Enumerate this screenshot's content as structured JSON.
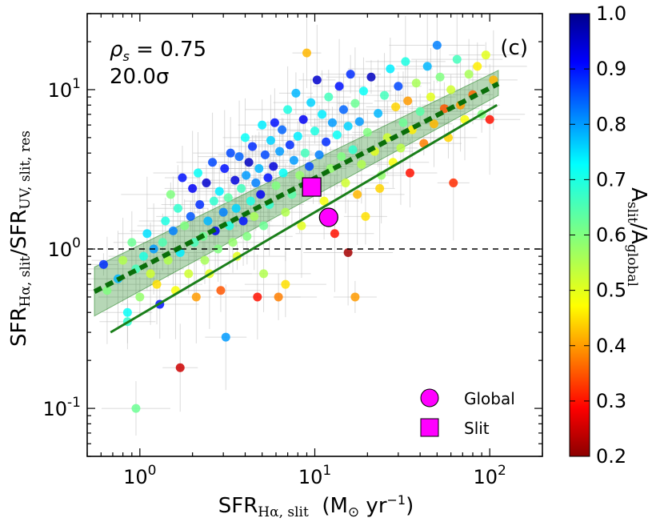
{
  "chart_data": {
    "type": "scatter",
    "panel_label": "(c)",
    "annotation_rho": "0.75",
    "annotation_rho_prefix": "ρ",
    "annotation_rho_sub": "s",
    "annotation_sigma": "20.0σ",
    "xlabel": {
      "main": "SFR",
      "sub": "Hα, slit",
      "units": "(M",
      "units_sub": "⊙",
      "units_tail": " yr",
      "units_exp": "−1",
      "units_close": ")"
    },
    "ylabel": {
      "main1": "SFR",
      "sub1": "Hα, slit",
      "sep": "/",
      "main2": "SFR",
      "sub2": "UV, slit, res"
    },
    "xscale": "log",
    "yscale": "log",
    "xlim": [
      0.5,
      200
    ],
    "ylim": [
      0.05,
      30
    ],
    "xticks": [
      1,
      10,
      100
    ],
    "xtick_labels": [
      {
        "base": "10",
        "exp": "0"
      },
      {
        "base": "10",
        "exp": "1"
      },
      {
        "base": "10",
        "exp": "2"
      }
    ],
    "yticks": [
      0.1,
      1,
      10
    ],
    "ytick_labels": [
      {
        "base": "10",
        "exp": "-1"
      },
      {
        "base": "10",
        "exp": "0"
      },
      {
        "base": "10",
        "exp": "1"
      }
    ],
    "unity_line_y": 1.0,
    "one_to_one_line": {
      "x": [
        0.68,
        110
      ],
      "y": [
        0.3,
        8.0
      ]
    },
    "fit_line": {
      "x": [
        0.55,
        112
      ],
      "y": [
        0.54,
        10.9
      ]
    },
    "fit_band": {
      "x": [
        0.55,
        112
      ],
      "lower": [
        0.38,
        9.2
      ],
      "upper": [
        0.77,
        13.2
      ]
    },
    "legend": [
      {
        "name": "Global",
        "marker": "circle",
        "x": 12.0,
        "y": 1.58
      },
      {
        "name": "Slit",
        "marker": "square",
        "x": 9.6,
        "y": 2.45
      }
    ],
    "special_points_color": "#ff00ff",
    "colorbar": {
      "label_main": "A",
      "label_sub1": "slit",
      "label_sep": "/",
      "label_main2": "A",
      "label_sub2": "global",
      "range": [
        0.2,
        1.0
      ],
      "ticks": [
        "0.2",
        "0.3",
        "0.4",
        "0.5",
        "0.6",
        "0.7",
        "0.8",
        "0.9",
        "1.0"
      ]
    },
    "points": [
      [
        0.62,
        0.8,
        0.88
      ],
      [
        0.65,
        0.55,
        0.6
      ],
      [
        0.75,
        0.65,
        0.78
      ],
      [
        0.8,
        0.85,
        0.55
      ],
      [
        0.85,
        0.4,
        0.72
      ],
      [
        0.9,
        1.1,
        0.62
      ],
      [
        0.95,
        0.75,
        0.66
      ],
      [
        1.0,
        0.5,
        0.58
      ],
      [
        1.05,
        0.9,
        0.7
      ],
      [
        1.1,
        1.25,
        0.75
      ],
      [
        1.15,
        0.7,
        0.52
      ],
      [
        1.2,
        1.0,
        0.8
      ],
      [
        1.25,
        0.6,
        0.45
      ],
      [
        1.3,
        0.45,
        0.9
      ],
      [
        1.35,
        1.1,
        0.65
      ],
      [
        1.4,
        1.5,
        0.7
      ],
      [
        1.45,
        0.85,
        0.55
      ],
      [
        1.5,
        2.2,
        0.6
      ],
      [
        1.55,
        1.3,
        0.82
      ],
      [
        1.6,
        0.55,
        0.48
      ],
      [
        1.65,
        1.8,
        0.68
      ],
      [
        1.7,
        0.95,
        0.74
      ],
      [
        1.75,
        2.8,
        0.9
      ],
      [
        1.8,
        1.4,
        0.6
      ],
      [
        1.9,
        0.7,
        0.52
      ],
      [
        1.95,
        1.6,
        0.85
      ],
      [
        2.0,
        2.4,
        0.92
      ],
      [
        2.05,
        1.1,
        0.66
      ],
      [
        2.1,
        0.5,
        0.4
      ],
      [
        2.15,
        3.0,
        0.72
      ],
      [
        2.2,
        1.9,
        0.88
      ],
      [
        2.3,
        1.2,
        0.62
      ],
      [
        2.35,
        0.85,
        0.56
      ],
      [
        2.4,
        2.6,
        0.95
      ],
      [
        2.45,
        1.5,
        0.78
      ],
      [
        2.5,
        0.7,
        0.5
      ],
      [
        2.6,
        3.5,
        0.86
      ],
      [
        2.65,
        2.0,
        0.68
      ],
      [
        2.7,
        1.3,
        0.92
      ],
      [
        2.8,
        1.0,
        0.6
      ],
      [
        2.85,
        2.3,
        0.74
      ],
      [
        2.9,
        0.55,
        0.35
      ],
      [
        3.0,
        1.7,
        0.82
      ],
      [
        3.05,
        3.2,
        0.9
      ],
      [
        3.1,
        0.28,
        0.8
      ],
      [
        3.2,
        2.1,
        0.64
      ],
      [
        3.25,
        1.4,
        0.7
      ],
      [
        3.3,
        4.0,
        0.86
      ],
      [
        3.4,
        1.1,
        0.58
      ],
      [
        3.5,
        2.7,
        0.94
      ],
      [
        3.55,
        1.8,
        0.76
      ],
      [
        3.6,
        0.9,
        0.5
      ],
      [
        3.7,
        3.8,
        0.84
      ],
      [
        3.8,
        2.4,
        0.66
      ],
      [
        3.9,
        1.5,
        0.9
      ],
      [
        4.0,
        5.0,
        0.72
      ],
      [
        4.05,
        2.9,
        0.8
      ],
      [
        4.1,
        1.2,
        0.6
      ],
      [
        4.2,
        3.5,
        0.96
      ],
      [
        4.3,
        2.0,
        0.7
      ],
      [
        4.4,
        4.4,
        0.88
      ],
      [
        4.5,
        1.6,
        0.56
      ],
      [
        4.6,
        2.6,
        0.82
      ],
      [
        4.7,
        0.5,
        0.3
      ],
      [
        4.8,
        3.2,
        0.78
      ],
      [
        4.9,
        2.2,
        0.92
      ],
      [
        5.0,
        6.0,
        0.74
      ],
      [
        5.1,
        1.4,
        0.62
      ],
      [
        5.2,
        3.9,
        0.86
      ],
      [
        5.4,
        2.8,
        0.9
      ],
      [
        5.5,
        1.9,
        0.68
      ],
      [
        5.6,
        4.8,
        0.76
      ],
      [
        5.8,
        3.3,
        0.94
      ],
      [
        5.9,
        6.2,
        0.9
      ],
      [
        6.0,
        2.5,
        0.6
      ],
      [
        6.2,
        0.5,
        0.38
      ],
      [
        6.3,
        4.1,
        0.8
      ],
      [
        6.5,
        5.6,
        0.84
      ],
      [
        6.6,
        3.0,
        0.72
      ],
      [
        6.8,
        1.7,
        0.55
      ],
      [
        7.0,
        7.5,
        0.7
      ],
      [
        7.2,
        4.5,
        0.88
      ],
      [
        7.4,
        2.2,
        0.64
      ],
      [
        7.6,
        3.6,
        0.8
      ],
      [
        7.8,
        9.5,
        0.78
      ],
      [
        8.0,
        5.1,
        0.74
      ],
      [
        8.2,
        2.9,
        0.58
      ],
      [
        8.4,
        1.4,
        0.5
      ],
      [
        8.6,
        6.5,
        0.92
      ],
      [
        8.8,
        4.0,
        0.66
      ],
      [
        9.0,
        17.0,
        0.42
      ],
      [
        9.3,
        3.3,
        0.86
      ],
      [
        9.5,
        8.3,
        0.76
      ],
      [
        9.8,
        2.5,
        0.62
      ],
      [
        10.0,
        5.5,
        0.7
      ],
      [
        10.3,
        11.5,
        0.95
      ],
      [
        10.6,
        3.9,
        0.82
      ],
      [
        11.0,
        7.0,
        0.74
      ],
      [
        11.3,
        2.0,
        0.48
      ],
      [
        11.6,
        4.7,
        0.88
      ],
      [
        12.0,
        9.0,
        0.66
      ],
      [
        12.3,
        3.2,
        0.58
      ],
      [
        12.6,
        6.2,
        0.8
      ],
      [
        13.0,
        1.25,
        0.3
      ],
      [
        13.4,
        5.2,
        0.72
      ],
      [
        13.8,
        10.5,
        0.9
      ],
      [
        14.2,
        3.8,
        0.6
      ],
      [
        14.6,
        7.5,
        0.84
      ],
      [
        15.0,
        2.6,
        0.52
      ],
      [
        15.5,
        5.9,
        0.76
      ],
      [
        16.0,
        12.5,
        0.88
      ],
      [
        16.5,
        4.2,
        0.68
      ],
      [
        17.0,
        8.2,
        0.62
      ],
      [
        17.5,
        2.2,
        0.42
      ],
      [
        18.0,
        6.3,
        0.8
      ],
      [
        18.5,
        3.4,
        0.55
      ],
      [
        19.0,
        9.8,
        0.72
      ],
      [
        19.5,
        1.6,
        0.45
      ],
      [
        20.0,
        5.4,
        0.6
      ],
      [
        21.0,
        12.0,
        0.96
      ],
      [
        22.0,
        4.1,
        0.5
      ],
      [
        23.0,
        7.1,
        0.78
      ],
      [
        24.0,
        2.9,
        0.58
      ],
      [
        25.0,
        9.2,
        0.66
      ],
      [
        26.0,
        5.0,
        0.52
      ],
      [
        27.0,
        13.5,
        0.74
      ],
      [
        28.0,
        3.5,
        0.48
      ],
      [
        29.0,
        7.8,
        0.44
      ],
      [
        30.0,
        10.5,
        0.86
      ],
      [
        31.0,
        4.3,
        0.54
      ],
      [
        32.0,
        6.2,
        0.62
      ],
      [
        33.0,
        15.0,
        0.7
      ],
      [
        34.0,
        8.5,
        0.4
      ],
      [
        35.0,
        3.0,
        0.3
      ],
      [
        36.0,
        5.6,
        0.46
      ],
      [
        38.0,
        11.0,
        0.56
      ],
      [
        40.0,
        7.3,
        0.64
      ],
      [
        42.0,
        4.6,
        0.38
      ],
      [
        44.0,
        14.0,
        0.78
      ],
      [
        46.0,
        9.0,
        0.5
      ],
      [
        48.0,
        6.1,
        0.42
      ],
      [
        50.0,
        19.0,
        0.82
      ],
      [
        52.0,
        12.0,
        0.6
      ],
      [
        55.0,
        7.6,
        0.35
      ],
      [
        58.0,
        5.0,
        0.44
      ],
      [
        60.0,
        10.0,
        0.52
      ],
      [
        62.0,
        2.6,
        0.32
      ],
      [
        65.0,
        15.5,
        0.66
      ],
      [
        68.0,
        8.0,
        0.4
      ],
      [
        72.0,
        6.5,
        0.48
      ],
      [
        76.0,
        12.5,
        0.56
      ],
      [
        80.0,
        9.3,
        0.36
      ],
      [
        85.0,
        14.0,
        0.46
      ],
      [
        90.0,
        7.0,
        0.6
      ],
      [
        95.0,
        16.5,
        0.5
      ],
      [
        100.0,
        6.5,
        0.3
      ],
      [
        105.0,
        11.5,
        0.42
      ],
      [
        1.7,
        0.18,
        0.25
      ],
      [
        5.1,
        0.7,
        0.55
      ],
      [
        6.8,
        0.6,
        0.45
      ],
      [
        0.95,
        0.1,
        0.62
      ],
      [
        0.85,
        0.35,
        0.68
      ],
      [
        17.0,
        0.5,
        0.4
      ],
      [
        23.5,
        2.4,
        0.44
      ],
      [
        15.5,
        0.95,
        0.22
      ]
    ]
  }
}
